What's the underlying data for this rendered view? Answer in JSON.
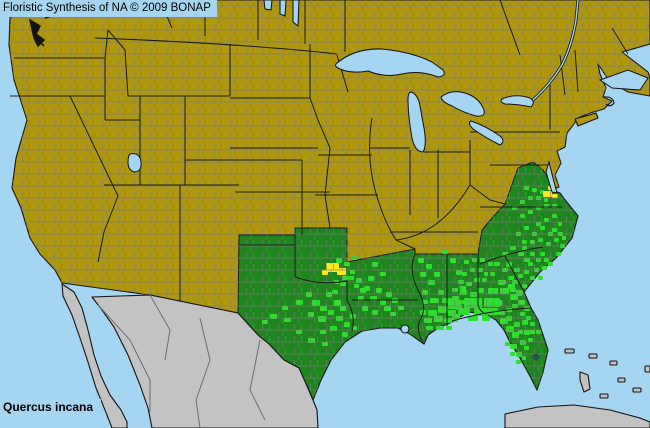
{
  "header": {
    "title": "Floristic Synthesis of NA © 2009 BONAP"
  },
  "footer": {
    "species_label": "Quercus incana"
  },
  "map": {
    "colors": {
      "water": "#A5D5F0",
      "land_absent": "#AF980D",
      "state_present": "#1F851F",
      "county_present": "#2FDF2F",
      "county_rare": "#FFE81A",
      "out_of_coverage": "#C3C3C3",
      "county_line": "#7B7B7B",
      "state_line": "#1A1A1A",
      "coastline": "#141414",
      "lake_outline": "#101010",
      "text": "#000000"
    },
    "markers": {
      "county_present": [
        [
          296,
          300,
          7,
          5
        ],
        [
          306,
          292,
          6,
          5
        ],
        [
          312,
          300,
          8,
          6
        ],
        [
          320,
          306,
          7,
          5
        ],
        [
          308,
          312,
          6,
          5
        ],
        [
          318,
          316,
          8,
          6
        ],
        [
          328,
          310,
          6,
          5
        ],
        [
          334,
          300,
          7,
          6
        ],
        [
          326,
          292,
          6,
          5
        ],
        [
          340,
          306,
          6,
          5
        ],
        [
          336,
          316,
          7,
          5
        ],
        [
          344,
          322,
          6,
          5
        ],
        [
          330,
          326,
          7,
          5
        ],
        [
          320,
          330,
          6,
          4
        ],
        [
          342,
          332,
          6,
          5
        ],
        [
          350,
          314,
          6,
          5
        ],
        [
          352,
          326,
          5,
          4
        ],
        [
          284,
          318,
          7,
          4
        ],
        [
          270,
          314,
          7,
          5
        ],
        [
          296,
          330,
          6,
          4
        ],
        [
          308,
          338,
          7,
          5
        ],
        [
          322,
          342,
          6,
          4
        ],
        [
          262,
          320,
          6,
          4
        ],
        [
          282,
          306,
          6,
          4
        ],
        [
          332,
          290,
          6,
          4
        ],
        [
          340,
          282,
          6,
          4
        ],
        [
          348,
          276,
          6,
          4
        ],
        [
          354,
          284,
          5,
          4
        ],
        [
          336,
          258,
          6,
          5
        ],
        [
          344,
          262,
          6,
          4
        ],
        [
          342,
          276,
          6,
          4
        ],
        [
          334,
          280,
          5,
          4
        ],
        [
          350,
          270,
          5,
          4
        ],
        [
          352,
          256,
          5,
          4
        ],
        [
          356,
          278,
          6,
          5
        ],
        [
          360,
          288,
          6,
          5
        ],
        [
          358,
          296,
          6,
          5
        ],
        [
          364,
          286,
          6,
          5
        ],
        [
          370,
          296,
          7,
          5
        ],
        [
          362,
          306,
          6,
          5
        ],
        [
          372,
          310,
          6,
          5
        ],
        [
          380,
          300,
          6,
          5
        ],
        [
          376,
          288,
          6,
          5
        ],
        [
          386,
          292,
          6,
          5
        ],
        [
          384,
          306,
          7,
          5
        ],
        [
          392,
          298,
          6,
          5
        ],
        [
          390,
          312,
          6,
          4
        ],
        [
          398,
          306,
          6,
          4
        ],
        [
          368,
          276,
          6,
          5
        ],
        [
          380,
          272,
          6,
          4
        ],
        [
          372,
          262,
          6,
          5
        ],
        [
          418,
          258,
          6,
          5
        ],
        [
          426,
          264,
          6,
          5
        ],
        [
          420,
          272,
          6,
          5
        ],
        [
          428,
          280,
          7,
          5
        ],
        [
          434,
          272,
          6,
          5
        ],
        [
          422,
          290,
          6,
          5
        ],
        [
          430,
          298,
          7,
          5
        ],
        [
          438,
          290,
          6,
          5
        ],
        [
          446,
          298,
          6,
          5
        ],
        [
          456,
          270,
          6,
          5
        ],
        [
          450,
          258,
          6,
          5
        ],
        [
          442,
          250,
          6,
          4
        ],
        [
          460,
          286,
          6,
          5
        ],
        [
          462,
          300,
          6,
          4
        ],
        [
          452,
          288,
          6,
          4
        ],
        [
          428,
          310,
          9,
          6
        ],
        [
          438,
          306,
          10,
          7
        ],
        [
          448,
          310,
          8,
          6
        ],
        [
          424,
          318,
          8,
          5
        ],
        [
          434,
          316,
          9,
          6
        ],
        [
          444,
          318,
          8,
          5
        ],
        [
          426,
          326,
          7,
          4
        ],
        [
          436,
          326,
          8,
          4
        ],
        [
          446,
          326,
          6,
          4
        ],
        [
          452,
          318,
          6,
          4
        ],
        [
          420,
          310,
          6,
          5
        ],
        [
          456,
          306,
          6,
          4
        ],
        [
          432,
          298,
          7,
          5
        ],
        [
          442,
          298,
          8,
          5
        ],
        [
          452,
          296,
          7,
          5
        ],
        [
          422,
          300,
          6,
          4
        ],
        [
          448,
          300,
          14,
          9
        ],
        [
          464,
          298,
          18,
          10
        ],
        [
          484,
          298,
          16,
          9
        ],
        [
          458,
          308,
          12,
          7
        ],
        [
          474,
          308,
          14,
          8
        ],
        [
          488,
          308,
          10,
          7
        ],
        [
          494,
          300,
          8,
          6
        ],
        [
          452,
          314,
          8,
          5
        ],
        [
          468,
          316,
          10,
          5
        ],
        [
          482,
          316,
          8,
          5
        ],
        [
          498,
          310,
          7,
          5
        ],
        [
          500,
          318,
          8,
          6
        ],
        [
          506,
          326,
          8,
          6
        ],
        [
          512,
          332,
          7,
          6
        ],
        [
          506,
          316,
          6,
          5
        ],
        [
          514,
          322,
          6,
          5
        ],
        [
          510,
          344,
          7,
          5
        ],
        [
          516,
          352,
          6,
          5
        ],
        [
          520,
          340,
          6,
          5
        ],
        [
          524,
          330,
          6,
          5
        ],
        [
          518,
          330,
          5,
          4
        ],
        [
          528,
          338,
          5,
          4
        ],
        [
          524,
          346,
          5,
          4
        ],
        [
          530,
          330,
          5,
          4
        ],
        [
          522,
          320,
          6,
          5
        ],
        [
          530,
          322,
          5,
          4
        ],
        [
          536,
          330,
          5,
          4
        ],
        [
          516,
          360,
          5,
          4
        ],
        [
          522,
          356,
          4,
          4
        ],
        [
          510,
          352,
          5,
          4
        ],
        [
          505,
          342,
          5,
          4
        ],
        [
          488,
          288,
          10,
          6
        ],
        [
          500,
          288,
          9,
          6
        ],
        [
          510,
          294,
          8,
          6
        ],
        [
          498,
          280,
          7,
          5
        ],
        [
          508,
          284,
          7,
          5
        ],
        [
          516,
          290,
          7,
          5
        ],
        [
          518,
          300,
          7,
          5
        ],
        [
          524,
          306,
          6,
          5
        ],
        [
          512,
          304,
          6,
          4
        ],
        [
          506,
          308,
          6,
          4
        ],
        [
          520,
          312,
          5,
          4
        ],
        [
          526,
          316,
          5,
          4
        ],
        [
          460,
          290,
          7,
          5
        ],
        [
          470,
          292,
          7,
          5
        ],
        [
          478,
          288,
          6,
          5
        ],
        [
          466,
          282,
          6,
          4
        ],
        [
          474,
          278,
          6,
          4
        ],
        [
          482,
          278,
          5,
          4
        ],
        [
          458,
          280,
          6,
          4
        ],
        [
          462,
          272,
          5,
          4
        ],
        [
          470,
          268,
          5,
          4
        ],
        [
          478,
          268,
          5,
          4
        ],
        [
          484,
          272,
          4,
          4
        ],
        [
          488,
          262,
          5,
          4
        ],
        [
          480,
          258,
          5,
          4
        ],
        [
          472,
          258,
          5,
          4
        ],
        [
          464,
          260,
          5,
          4
        ],
        [
          490,
          272,
          5,
          4
        ],
        [
          494,
          262,
          6,
          4
        ],
        [
          502,
          268,
          6,
          4
        ],
        [
          500,
          280,
          6,
          4
        ],
        [
          508,
          276,
          6,
          4
        ],
        [
          506,
          262,
          6,
          5
        ],
        [
          514,
          268,
          6,
          4
        ],
        [
          512,
          280,
          6,
          4
        ],
        [
          518,
          274,
          5,
          4
        ],
        [
          510,
          288,
          6,
          4
        ],
        [
          516,
          292,
          6,
          4
        ],
        [
          502,
          252,
          6,
          4
        ],
        [
          510,
          246,
          6,
          4
        ],
        [
          518,
          252,
          6,
          4
        ],
        [
          524,
          258,
          6,
          4
        ],
        [
          522,
          246,
          5,
          4
        ],
        [
          530,
          252,
          5,
          4
        ],
        [
          528,
          262,
          5,
          4
        ],
        [
          534,
          268,
          5,
          4
        ],
        [
          536,
          258,
          5,
          4
        ],
        [
          540,
          252,
          5,
          4
        ],
        [
          544,
          258,
          5,
          4
        ],
        [
          542,
          266,
          5,
          4
        ],
        [
          548,
          262,
          5,
          4
        ],
        [
          524,
          270,
          5,
          4
        ],
        [
          530,
          276,
          5,
          4
        ],
        [
          538,
          276,
          5,
          4
        ],
        [
          522,
          284,
          5,
          4
        ],
        [
          516,
          232,
          5,
          4
        ],
        [
          524,
          226,
          5,
          4
        ],
        [
          532,
          232,
          5,
          4
        ],
        [
          540,
          226,
          5,
          4
        ],
        [
          548,
          232,
          5,
          4
        ],
        [
          538,
          238,
          5,
          4
        ],
        [
          546,
          242,
          5,
          4
        ],
        [
          554,
          238,
          5,
          4
        ],
        [
          530,
          240,
          5,
          4
        ],
        [
          522,
          240,
          5,
          4
        ],
        [
          552,
          228,
          5,
          4
        ],
        [
          558,
          232,
          5,
          4
        ],
        [
          544,
          218,
          5,
          4
        ],
        [
          552,
          214,
          5,
          4
        ],
        [
          536,
          222,
          5,
          4
        ],
        [
          558,
          222,
          4,
          4
        ],
        [
          560,
          244,
          5,
          4
        ],
        [
          556,
          252,
          5,
          4
        ],
        [
          562,
          236,
          4,
          4
        ],
        [
          536,
          206,
          5,
          4
        ],
        [
          544,
          204,
          5,
          4
        ],
        [
          552,
          204,
          5,
          4
        ],
        [
          528,
          210,
          5,
          4
        ],
        [
          520,
          214,
          5,
          4
        ],
        [
          536,
          196,
          5,
          4
        ],
        [
          528,
          196,
          5,
          4
        ],
        [
          544,
          198,
          4,
          4
        ],
        [
          520,
          200,
          5,
          4
        ],
        [
          512,
          206,
          5,
          4
        ],
        [
          532,
          188,
          5,
          4
        ],
        [
          524,
          186,
          5,
          4
        ],
        [
          540,
          190,
          4,
          4
        ]
      ],
      "county_rare": [
        [
          326,
          263,
          13,
          9
        ],
        [
          337,
          268,
          9,
          7
        ],
        [
          322,
          270,
          6,
          5
        ],
        [
          543,
          191,
          9,
          6
        ],
        [
          552,
          194,
          6,
          4
        ],
        [
          548,
          186,
          5,
          4
        ]
      ]
    }
  }
}
